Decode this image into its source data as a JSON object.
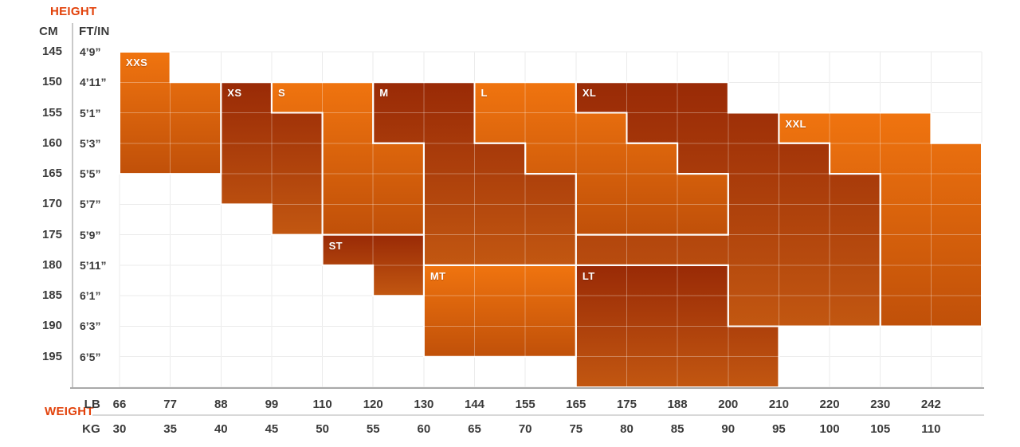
{
  "axes": {
    "height": {
      "title": "HEIGHT",
      "unit_primary": "CM",
      "unit_secondary": "FT/IN",
      "cm_ticks": [
        "145",
        "150",
        "155",
        "160",
        "165",
        "170",
        "175",
        "180",
        "185",
        "190",
        "195"
      ],
      "ftin_ticks": [
        "4’9”",
        "4’11”",
        "5’1”",
        "5’3”",
        "5’5”",
        "5’7”",
        "5’9”",
        "5’11”",
        "6’1”",
        "6’3”",
        "6’5”"
      ]
    },
    "weight": {
      "title": "WEIGHT",
      "unit_primary": "LB",
      "unit_secondary": "KG",
      "lb_ticks": [
        "66",
        "77",
        "88",
        "99",
        "110",
        "120",
        "130",
        "144",
        "155",
        "165",
        "175",
        "188",
        "200",
        "210",
        "220",
        "230",
        "242"
      ],
      "kg_ticks": [
        "30",
        "35",
        "40",
        "45",
        "50",
        "55",
        "60",
        "65",
        "70",
        "75",
        "80",
        "85",
        "90",
        "95",
        "100",
        "105",
        "110"
      ]
    }
  },
  "chart_data": {
    "type": "heatmap",
    "title": "",
    "xlabel": "WEIGHT",
    "ylabel": "HEIGHT",
    "x_ticks_lb": [
      "66",
      "77",
      "88",
      "99",
      "110",
      "120",
      "130",
      "144",
      "155",
      "165",
      "175",
      "188",
      "200",
      "210",
      "220",
      "230",
      "242"
    ],
    "x_ticks_kg": [
      "30",
      "35",
      "40",
      "45",
      "50",
      "55",
      "60",
      "65",
      "70",
      "75",
      "80",
      "85",
      "90",
      "95",
      "100",
      "105",
      "110"
    ],
    "y_ticks_cm": [
      "145",
      "150",
      "155",
      "160",
      "165",
      "170",
      "175",
      "180",
      "185",
      "190",
      "195"
    ],
    "y_ticks_ftin": [
      "4’9”",
      "4’11”",
      "5’1”",
      "5’3”",
      "5’5”",
      "5’7”",
      "5’9”",
      "5’11”",
      "6’1”",
      "6’3”",
      "6’5”"
    ],
    "grid": true,
    "legend": false,
    "note": "Size regions; polygon points are [weight-column-index, height-cm]; column index maps to lb_ticks order, 17 = right chart edge; height 200 = bottom chart edge.",
    "regions": [
      {
        "label": "XXS",
        "shade": "bright",
        "weight_range_lb": "66-88",
        "height_range_cm": "145-165",
        "label_cell": [
          0,
          145
        ],
        "polygon": [
          [
            0,
            145
          ],
          [
            1,
            145
          ],
          [
            1,
            150
          ],
          [
            2,
            150
          ],
          [
            2,
            165
          ],
          [
            0,
            165
          ]
        ]
      },
      {
        "label": "XS",
        "shade": "dark",
        "weight_range_lb": "88-110",
        "height_range_cm": "150-175",
        "label_cell": [
          2,
          150
        ],
        "polygon": [
          [
            2,
            150
          ],
          [
            3,
            150
          ],
          [
            3,
            155
          ],
          [
            4,
            155
          ],
          [
            4,
            175
          ],
          [
            3,
            175
          ],
          [
            3,
            170
          ],
          [
            2,
            170
          ]
        ]
      },
      {
        "label": "S",
        "shade": "bright",
        "weight_range_lb": "99-130",
        "height_range_cm": "150-175",
        "label_cell": [
          3,
          150
        ],
        "polygon": [
          [
            3,
            150
          ],
          [
            5,
            150
          ],
          [
            5,
            160
          ],
          [
            6,
            160
          ],
          [
            6,
            175
          ],
          [
            4,
            175
          ],
          [
            4,
            155
          ],
          [
            3,
            155
          ]
        ]
      },
      {
        "label": "M",
        "shade": "dark",
        "weight_range_lb": "120-165",
        "height_range_cm": "150-180",
        "label_cell": [
          5,
          150
        ],
        "polygon": [
          [
            5,
            150
          ],
          [
            7,
            150
          ],
          [
            7,
            160
          ],
          [
            8,
            160
          ],
          [
            8,
            165
          ],
          [
            9,
            165
          ],
          [
            9,
            180
          ],
          [
            6,
            180
          ],
          [
            6,
            160
          ],
          [
            5,
            160
          ]
        ]
      },
      {
        "label": "L",
        "shade": "bright",
        "weight_range_lb": "144-200",
        "height_range_cm": "150-175",
        "label_cell": [
          7,
          150
        ],
        "polygon": [
          [
            7,
            150
          ],
          [
            9,
            150
          ],
          [
            9,
            155
          ],
          [
            10,
            155
          ],
          [
            10,
            160
          ],
          [
            11,
            160
          ],
          [
            11,
            165
          ],
          [
            12,
            165
          ],
          [
            12,
            175
          ],
          [
            9,
            175
          ],
          [
            9,
            165
          ],
          [
            8,
            165
          ],
          [
            8,
            160
          ],
          [
            7,
            160
          ]
        ]
      },
      {
        "label": "XL",
        "shade": "dark",
        "weight_range_lb": "165-230",
        "height_range_cm": "150-190",
        "label_cell": [
          9,
          150
        ],
        "polygon": [
          [
            9,
            150
          ],
          [
            12,
            150
          ],
          [
            12,
            155
          ],
          [
            13,
            155
          ],
          [
            13,
            160
          ],
          [
            14,
            160
          ],
          [
            14,
            165
          ],
          [
            15,
            165
          ],
          [
            15,
            190
          ],
          [
            12,
            190
          ],
          [
            12,
            180
          ],
          [
            9,
            180
          ],
          [
            9,
            175
          ],
          [
            12,
            175
          ],
          [
            12,
            165
          ],
          [
            11,
            165
          ],
          [
            11,
            160
          ],
          [
            10,
            160
          ],
          [
            10,
            155
          ],
          [
            9,
            155
          ]
        ]
      },
      {
        "label": "XXL",
        "shade": "bright",
        "weight_range_lb": "210-242+",
        "height_range_cm": "155-190",
        "label_cell": [
          13,
          155
        ],
        "polygon": [
          [
            13,
            155
          ],
          [
            16,
            155
          ],
          [
            16,
            160
          ],
          [
            17,
            160
          ],
          [
            17,
            190
          ],
          [
            15,
            190
          ],
          [
            15,
            165
          ],
          [
            14,
            165
          ],
          [
            14,
            160
          ],
          [
            13,
            160
          ]
        ]
      },
      {
        "label": "ST",
        "shade": "dark",
        "weight_range_lb": "110-130",
        "height_range_cm": "175-185",
        "label_cell": [
          4,
          175
        ],
        "polygon": [
          [
            4,
            175
          ],
          [
            6,
            175
          ],
          [
            6,
            185
          ],
          [
            5,
            185
          ],
          [
            5,
            180
          ],
          [
            4,
            180
          ]
        ]
      },
      {
        "label": "MT",
        "shade": "bright",
        "weight_range_lb": "130-165",
        "height_range_cm": "180-195",
        "label_cell": [
          6,
          180
        ],
        "polygon": [
          [
            6,
            180
          ],
          [
            9,
            180
          ],
          [
            9,
            195
          ],
          [
            6,
            195
          ]
        ]
      },
      {
        "label": "LT",
        "shade": "dark",
        "weight_range_lb": "165-210",
        "height_range_cm": "180-195+",
        "label_cell": [
          9,
          180
        ],
        "polygon": [
          [
            9,
            180
          ],
          [
            12,
            180
          ],
          [
            12,
            190
          ],
          [
            13,
            190
          ],
          [
            13,
            200
          ],
          [
            9,
            200
          ]
        ]
      }
    ],
    "colors": {
      "bright_start": "#F0740F",
      "bright_end": "#C05009",
      "dark_start": "#992A06",
      "dark_end": "#C25711",
      "accent_text": "#E2420B",
      "tick_text": "#3A3A3A",
      "region_label_text": "#FFFFFF",
      "region_border": "#FFFFFF",
      "grid_on_white": "#E2E2E2",
      "grid_on_region": "rgba(255,255,255,0.32)"
    }
  }
}
